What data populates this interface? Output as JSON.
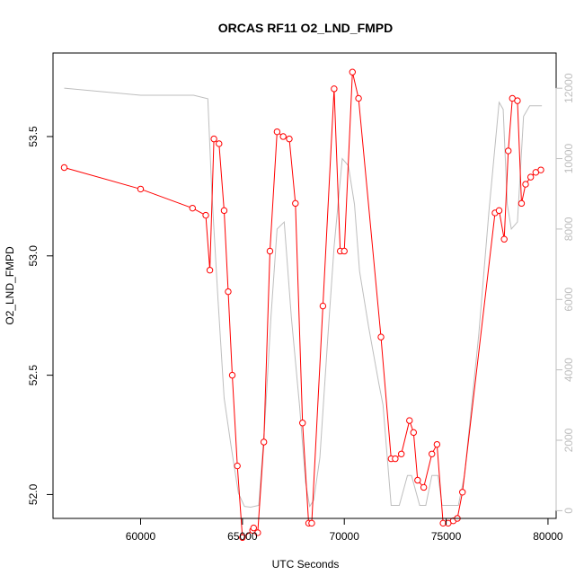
{
  "chart_data": {
    "type": "line",
    "title": "ORCAS RF11 O2_LND_FMPD",
    "xlabel": "UTC Seconds",
    "ylabel": "O2_LND_FMPD",
    "xlim": [
      55700,
      80400
    ],
    "ylim": [
      51.9,
      53.85
    ],
    "y2lim": [
      -220,
      13000
    ],
    "x_ticks": [
      60000,
      65000,
      70000,
      75000,
      80000
    ],
    "y_ticks": [
      52.0,
      52.5,
      53.0,
      53.5
    ],
    "y2_ticks": [
      0,
      2000,
      4000,
      6000,
      8000,
      10000,
      12000
    ],
    "frame": "box",
    "grid": false,
    "series": [
      {
        "axis": "left",
        "color": "#ff0000",
        "style": "line+points",
        "x": [
          56250,
          60000,
          62550,
          63200,
          63400,
          63600,
          63850,
          64100,
          64300,
          64500,
          64750,
          65000,
          65500,
          65550,
          65750,
          66050,
          66350,
          66700,
          67000,
          67300,
          67600,
          67950,
          68250,
          68400,
          68950,
          69500,
          69800,
          70000,
          70400,
          70700,
          71800,
          72300,
          72500,
          72800,
          73200,
          73400,
          73600,
          73900,
          74300,
          74550,
          74850,
          75100,
          75350,
          75550,
          75800,
          77400,
          77600,
          77850,
          78050,
          78250,
          78500,
          78700,
          78900,
          79150,
          79400,
          79650
        ],
        "y": [
          53.37,
          53.28,
          53.2,
          53.17,
          52.94,
          53.49,
          53.47,
          53.19,
          52.85,
          52.5,
          52.12,
          51.82,
          51.85,
          51.86,
          51.84,
          52.22,
          53.02,
          53.52,
          53.5,
          53.49,
          53.22,
          52.3,
          51.88,
          51.88,
          52.79,
          53.7,
          53.02,
          53.02,
          53.77,
          53.66,
          52.66,
          52.15,
          52.15,
          52.17,
          52.31,
          52.26,
          52.06,
          52.03,
          52.17,
          52.21,
          51.88,
          51.88,
          51.89,
          51.9,
          52.01,
          53.18,
          53.19,
          53.07,
          53.44,
          53.66,
          53.65,
          53.22,
          53.3,
          53.33,
          53.35,
          53.36
        ]
      },
      {
        "axis": "right",
        "color": "#bebebe",
        "style": "line",
        "x": [
          56250,
          60000,
          62600,
          63300,
          63500,
          63800,
          64100,
          64450,
          64800,
          65100,
          65400,
          65800,
          66100,
          66400,
          66700,
          67050,
          67400,
          67800,
          68100,
          68300,
          68500,
          68800,
          69200,
          69500,
          69900,
          70200,
          70500,
          70750,
          71200,
          71700,
          71900,
          72300,
          72700,
          73100,
          73300,
          73700,
          74000,
          74300,
          74600,
          74800,
          75300,
          75600,
          75900,
          76600,
          77100,
          77600,
          77800,
          78000,
          78200,
          78500,
          78800,
          79100,
          79300,
          79700
        ],
        "y": [
          12000,
          11800,
          11800,
          11700,
          9000,
          6000,
          3200,
          1800,
          500,
          120,
          100,
          150,
          2500,
          5500,
          8000,
          8200,
          5500,
          3000,
          800,
          120,
          300,
          1500,
          5000,
          7500,
          10000,
          9800,
          8700,
          6800,
          5200,
          3600,
          3000,
          150,
          150,
          1000,
          1000,
          150,
          150,
          1000,
          1000,
          150,
          150,
          150,
          1000,
          5000,
          8500,
          11600,
          11400,
          8700,
          8000,
          8200,
          11200,
          11500,
          11500,
          11500
        ]
      }
    ]
  }
}
